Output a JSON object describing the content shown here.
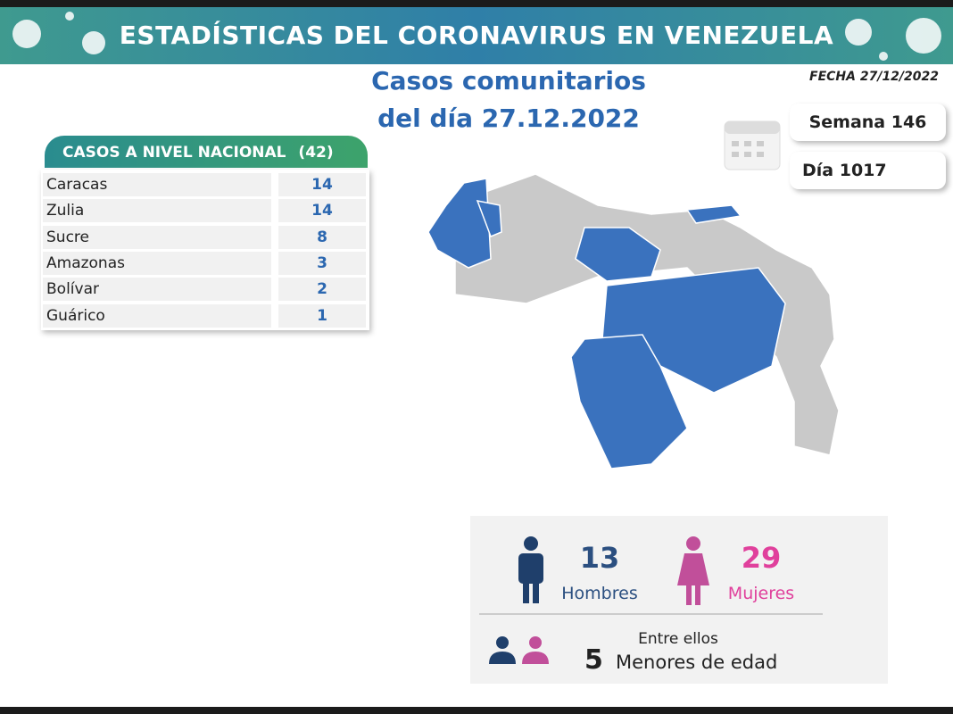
{
  "header": {
    "title": "ESTADÍSTICAS DEL CORONAVIRUS EN VENEZUELA"
  },
  "subtitle": [
    "Casos comunitarios",
    "del día 27.12.2022"
  ],
  "date": "FECHA 27/12/2022",
  "week": "Semana 146",
  "day": "Día 1017",
  "table": {
    "header": "CASOS A NIVEL NACIONAL",
    "total": "(42)",
    "rows": [
      [
        "Caracas",
        14
      ],
      [
        "Zulia",
        14
      ],
      [
        "Sucre",
        8
      ],
      [
        "Amazonas",
        3
      ],
      [
        "Bolívar",
        2
      ],
      [
        "Guárico",
        1
      ]
    ]
  },
  "gender": {
    "men": {
      "value": 13,
      "label": "Hombres"
    },
    "women": {
      "value": 29,
      "label": "Mujeres"
    }
  },
  "minors": {
    "intro": "Entre ellos",
    "value": 5,
    "label": "Menores de edad"
  }
}
